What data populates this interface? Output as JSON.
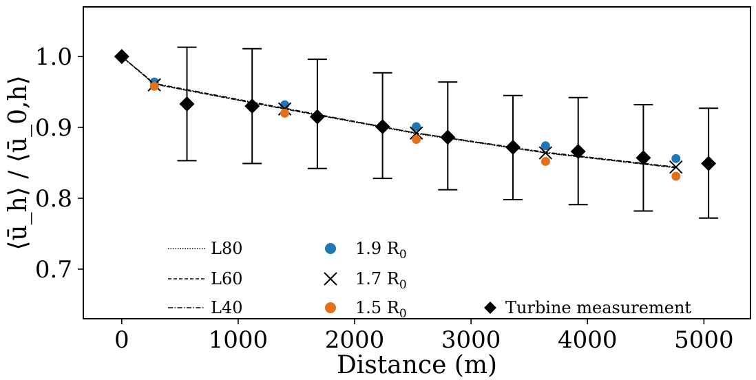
{
  "chart_data": {
    "type": "line",
    "xlabel": "Distance (m)",
    "ylabel": "⟨ū_h⟩ / ⟨ū_0,h⟩",
    "xlim": [
      -330,
      5400
    ],
    "ylim": [
      0.63,
      1.07
    ],
    "xticks": [
      0,
      1000,
      2000,
      3000,
      4000,
      5000
    ],
    "yticks": [
      0.7,
      0.8,
      0.9,
      1.0
    ],
    "xtick_labels": [
      "0",
      "1000",
      "2000",
      "3000",
      "4000",
      "5000"
    ],
    "ytick_labels": [
      "0.7",
      "0.8",
      "0.9",
      "1.0"
    ],
    "grid": false,
    "legend_placement": "bottom",
    "colors": {
      "blue": "#1f77b4",
      "orange": "#e3701a",
      "black": "#000000"
    },
    "lines": [
      {
        "name": "L80",
        "style": "dotted",
        "x": [
          0,
          280,
          1400,
          2530,
          3640,
          4760
        ],
        "y": [
          1.0,
          0.961,
          0.926,
          0.891,
          0.864,
          0.843
        ]
      },
      {
        "name": "L60",
        "style": "dashed",
        "x": [
          0,
          280,
          1400,
          2530,
          3640,
          4760
        ],
        "y": [
          1.0,
          0.961,
          0.926,
          0.892,
          0.864,
          0.843
        ]
      },
      {
        "name": "L40",
        "style": "dashdot",
        "x": [
          0,
          280,
          1400,
          2530,
          3640,
          4760
        ],
        "y": [
          1.0,
          0.962,
          0.927,
          0.892,
          0.865,
          0.844
        ]
      }
    ],
    "markers": [
      {
        "name": "1.9 R",
        "sub": "0",
        "marker": "circle",
        "color": "#1f77b4",
        "x": [
          280,
          1400,
          2530,
          3640,
          4760
        ],
        "y": [
          0.964,
          0.932,
          0.901,
          0.874,
          0.856
        ]
      },
      {
        "name": "1.7 R",
        "sub": "0",
        "marker": "x",
        "color": "#000000",
        "x": [
          280,
          1400,
          2530,
          3640,
          4760
        ],
        "y": [
          0.96,
          0.926,
          0.892,
          0.864,
          0.844
        ]
      },
      {
        "name": "1.5 R",
        "sub": "0",
        "marker": "circle",
        "color": "#e3701a",
        "x": [
          280,
          1400,
          2530,
          3640,
          4760
        ],
        "y": [
          0.958,
          0.92,
          0.883,
          0.852,
          0.831
        ]
      }
    ],
    "measurement": {
      "name": "Turbine measurement",
      "marker": "diamond",
      "color": "#000000",
      "x": [
        0,
        560,
        1120,
        1680,
        2240,
        2800,
        3360,
        3920,
        4480,
        5040
      ],
      "y": [
        1.0,
        0.933,
        0.93,
        0.915,
        0.901,
        0.886,
        0.872,
        0.866,
        0.857,
        0.849
      ],
      "err_low": [
        null,
        0.853,
        0.849,
        0.842,
        0.828,
        0.812,
        0.798,
        0.791,
        0.782,
        0.772
      ],
      "err_high": [
        null,
        1.013,
        1.011,
        0.996,
        0.977,
        0.964,
        0.945,
        0.942,
        0.932,
        0.927
      ]
    }
  }
}
